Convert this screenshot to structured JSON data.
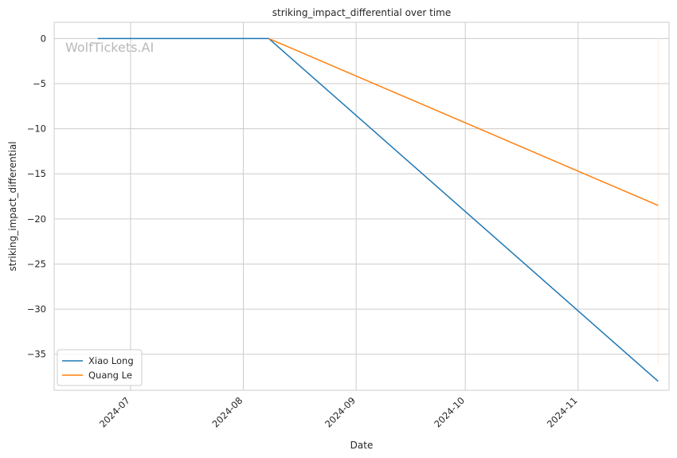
{
  "chart_data": {
    "type": "line",
    "title": "striking_impact_differential over time",
    "xlabel": "Date",
    "ylabel": "striking_impact_differential",
    "watermark": "WolfTickets.AI",
    "x_ticks": [
      "2024-07",
      "2024-08",
      "2024-09",
      "2024-10",
      "2024-11"
    ],
    "y_ticks": [
      0,
      -5,
      -10,
      -15,
      -20,
      -25,
      -30,
      -35
    ],
    "y_tick_labels": [
      "0",
      "−5",
      "−10",
      "−15",
      "−20",
      "−25",
      "−30",
      "−35"
    ],
    "xlim": [
      "2024-06-10",
      "2024-11-26"
    ],
    "ylim": [
      -39.0,
      1.8
    ],
    "grid": true,
    "legend_position": "lower-left",
    "series": [
      {
        "name": "Xiao Long",
        "color": "#1f77b4",
        "points": [
          {
            "x": "2024-06-22",
            "y": 0
          },
          {
            "x": "2024-08-08",
            "y": 0
          },
          {
            "x": "2024-11-23",
            "y": -38
          }
        ]
      },
      {
        "name": "Quang Le",
        "color": "#ff7f0e",
        "points": [
          {
            "x": "2024-08-08",
            "y": 0
          },
          {
            "x": "2024-11-23",
            "y": -18.5
          }
        ]
      }
    ]
  }
}
